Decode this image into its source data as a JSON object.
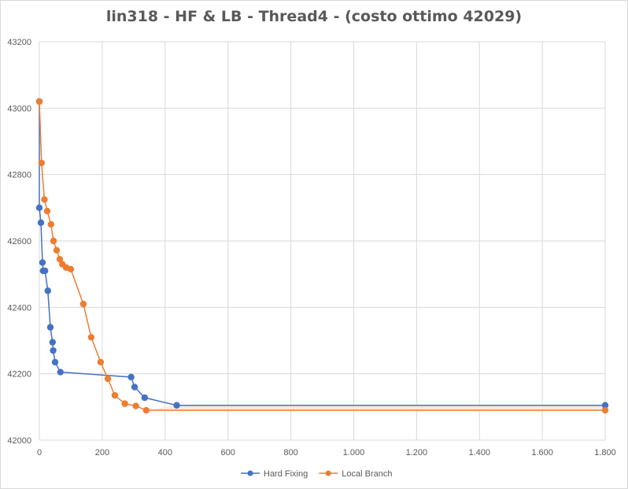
{
  "chart_data": {
    "type": "scatter",
    "title": "lin318 - HF & LB - Thread4 - (costo ottimo  42029)",
    "xlabel": "",
    "ylabel": "",
    "xlim": [
      0,
      1800
    ],
    "ylim": [
      42000,
      43200
    ],
    "x_ticks": [
      0,
      200,
      400,
      600,
      800,
      1000,
      1200,
      1400,
      1600,
      1800
    ],
    "x_tick_labels": [
      "0",
      "200",
      "400",
      "600",
      "800",
      "1.000",
      "1.200",
      "1.400",
      "1.600",
      "1.800"
    ],
    "y_ticks": [
      42000,
      42200,
      42400,
      42600,
      42800,
      43000,
      43200
    ],
    "y_tick_labels": [
      "42000",
      "42200",
      "42400",
      "42600",
      "42800",
      "43000",
      "43200"
    ],
    "grid": true,
    "legend_position": "bottom",
    "series": [
      {
        "name": "Hard Fixing",
        "color": "#4472c4",
        "points": [
          [
            0,
            43020
          ],
          [
            0,
            42700
          ],
          [
            5,
            42655
          ],
          [
            10,
            42535
          ],
          [
            12,
            42510
          ],
          [
            18,
            42510
          ],
          [
            27,
            42450
          ],
          [
            35,
            42340
          ],
          [
            42,
            42295
          ],
          [
            44,
            42270
          ],
          [
            50,
            42235
          ],
          [
            67,
            42205
          ],
          [
            292,
            42190
          ],
          [
            303,
            42160
          ],
          [
            335,
            42128
          ],
          [
            437,
            42105
          ],
          [
            1800,
            42105
          ]
        ]
      },
      {
        "name": "Local Branch",
        "color": "#ed7d31",
        "points": [
          [
            0,
            43020
          ],
          [
            7,
            42835
          ],
          [
            16,
            42725
          ],
          [
            25,
            42690
          ],
          [
            37,
            42650
          ],
          [
            45,
            42600
          ],
          [
            55,
            42572
          ],
          [
            65,
            42545
          ],
          [
            73,
            42530
          ],
          [
            85,
            42520
          ],
          [
            100,
            42515
          ],
          [
            140,
            42410
          ],
          [
            165,
            42310
          ],
          [
            195,
            42235
          ],
          [
            218,
            42185
          ],
          [
            240,
            42135
          ],
          [
            272,
            42110
          ],
          [
            307,
            42103
          ],
          [
            340,
            42090
          ],
          [
            1800,
            42090
          ]
        ]
      }
    ]
  }
}
